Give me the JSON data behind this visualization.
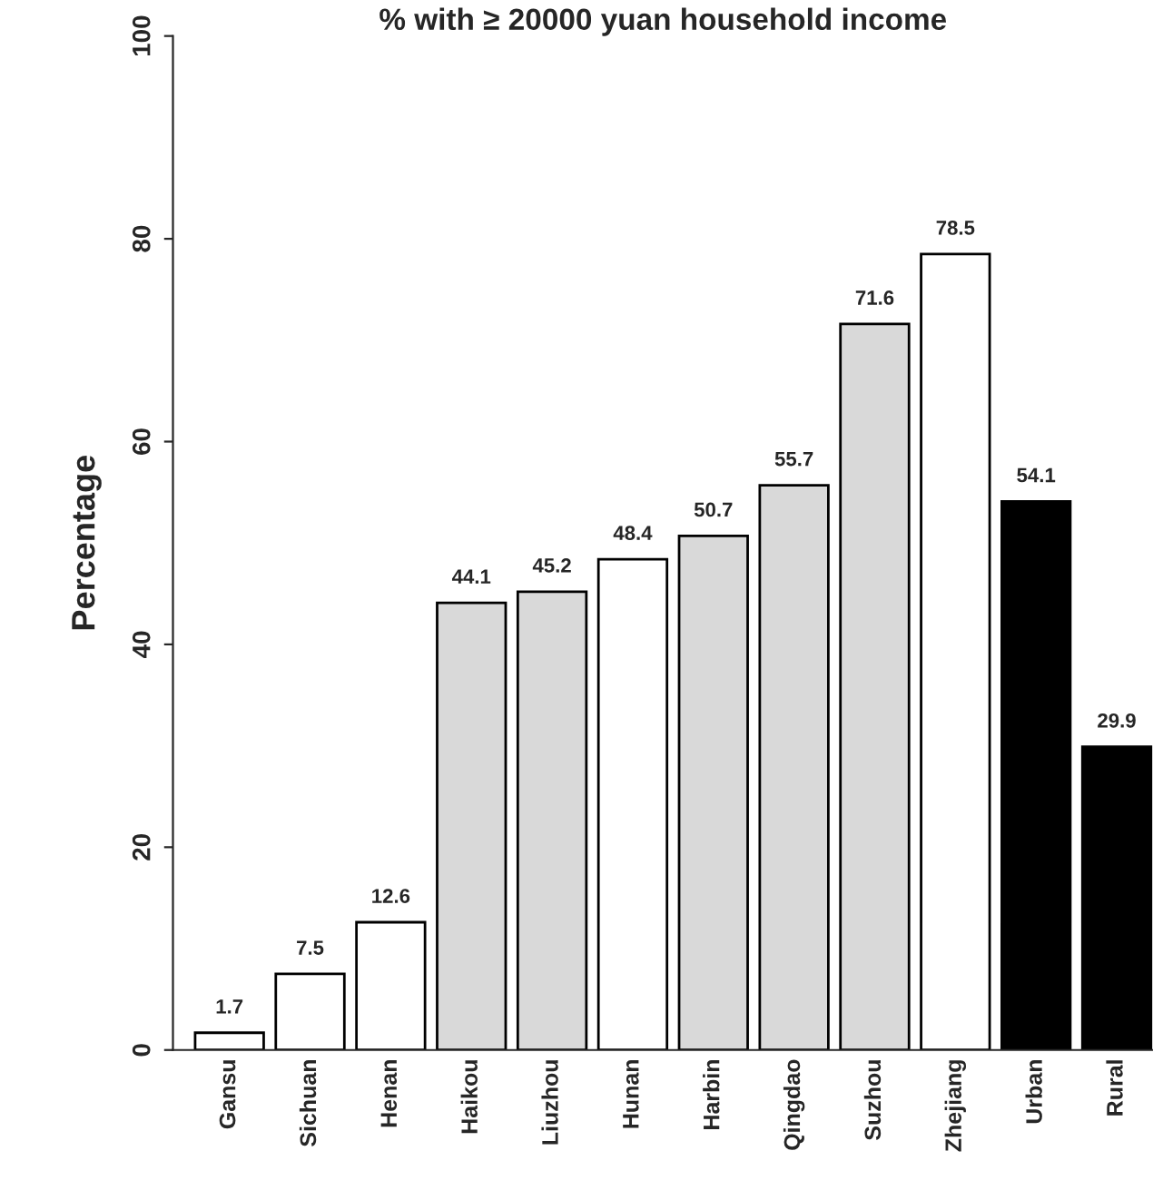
{
  "chart_data": {
    "type": "bar",
    "title": "% with ≥ 20000 yuan household income",
    "ylabel": "Percentage",
    "categories": [
      "Gansu",
      "Sichuan",
      "Henan",
      "Haikou",
      "Liuzhou",
      "Hunan",
      "Harbin",
      "Qingdao",
      "Suzhou",
      "Zhejiang",
      "Urban",
      "Rural"
    ],
    "values": [
      1.7,
      7.5,
      12.6,
      44.1,
      45.2,
      48.4,
      50.7,
      55.7,
      71.6,
      78.5,
      54.1,
      29.9
    ],
    "colors": [
      "#ffffff",
      "#ffffff",
      "#ffffff",
      "#d9d9d9",
      "#d9d9d9",
      "#ffffff",
      "#d9d9d9",
      "#d9d9d9",
      "#d9d9d9",
      "#ffffff",
      "#000000",
      "#000000"
    ],
    "ylim": [
      0,
      100
    ],
    "yticks": [
      0,
      20,
      40,
      60,
      80,
      100
    ],
    "data_labels": true,
    "grid": false,
    "legend": false
  }
}
